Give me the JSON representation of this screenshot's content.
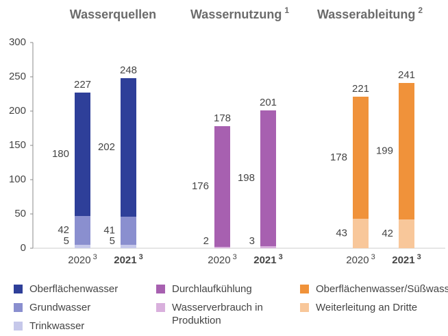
{
  "chart_data": {
    "type": "bar",
    "stacked": true,
    "ylim": [
      0,
      300
    ],
    "yticks": [
      0,
      50,
      100,
      150,
      200,
      250,
      300
    ],
    "categories": [
      "2020",
      "2021"
    ],
    "category_notes": [
      "3",
      "3"
    ],
    "groups": [
      {
        "title": "Wasserquellen",
        "title_note": null,
        "series": [
          {
            "name": "Trinkwasser",
            "color": "#c6c8ea",
            "values": [
              5,
              5
            ]
          },
          {
            "name": "Grundwasser",
            "color": "#8a8fcf",
            "values": [
              42,
              41
            ]
          },
          {
            "name": "Oberflächenwasser",
            "color": "#2e3f99",
            "values": [
              180,
              202
            ]
          }
        ],
        "totals": [
          227,
          248
        ]
      },
      {
        "title": "Wassernutzung",
        "title_note": "1",
        "series": [
          {
            "name": "Wasserverbrauch in Produktion",
            "color": "#d9b0dd",
            "values": [
              2,
              3
            ]
          },
          {
            "name": "Durchlaufkühlung",
            "color": "#a760b0",
            "values": [
              176,
              198
            ]
          }
        ],
        "totals": [
          178,
          201
        ]
      },
      {
        "title": "Wasserableitung",
        "title_note": "2",
        "series": [
          {
            "name": "Weiterleitung an Dritte",
            "color": "#f8c79a",
            "values": [
              43,
              42
            ]
          },
          {
            "name": "Oberflächenwasser/Süßwasser",
            "color": "#f0923a",
            "values": [
              178,
              199
            ]
          }
        ],
        "totals": [
          221,
          241
        ]
      }
    ]
  }
}
